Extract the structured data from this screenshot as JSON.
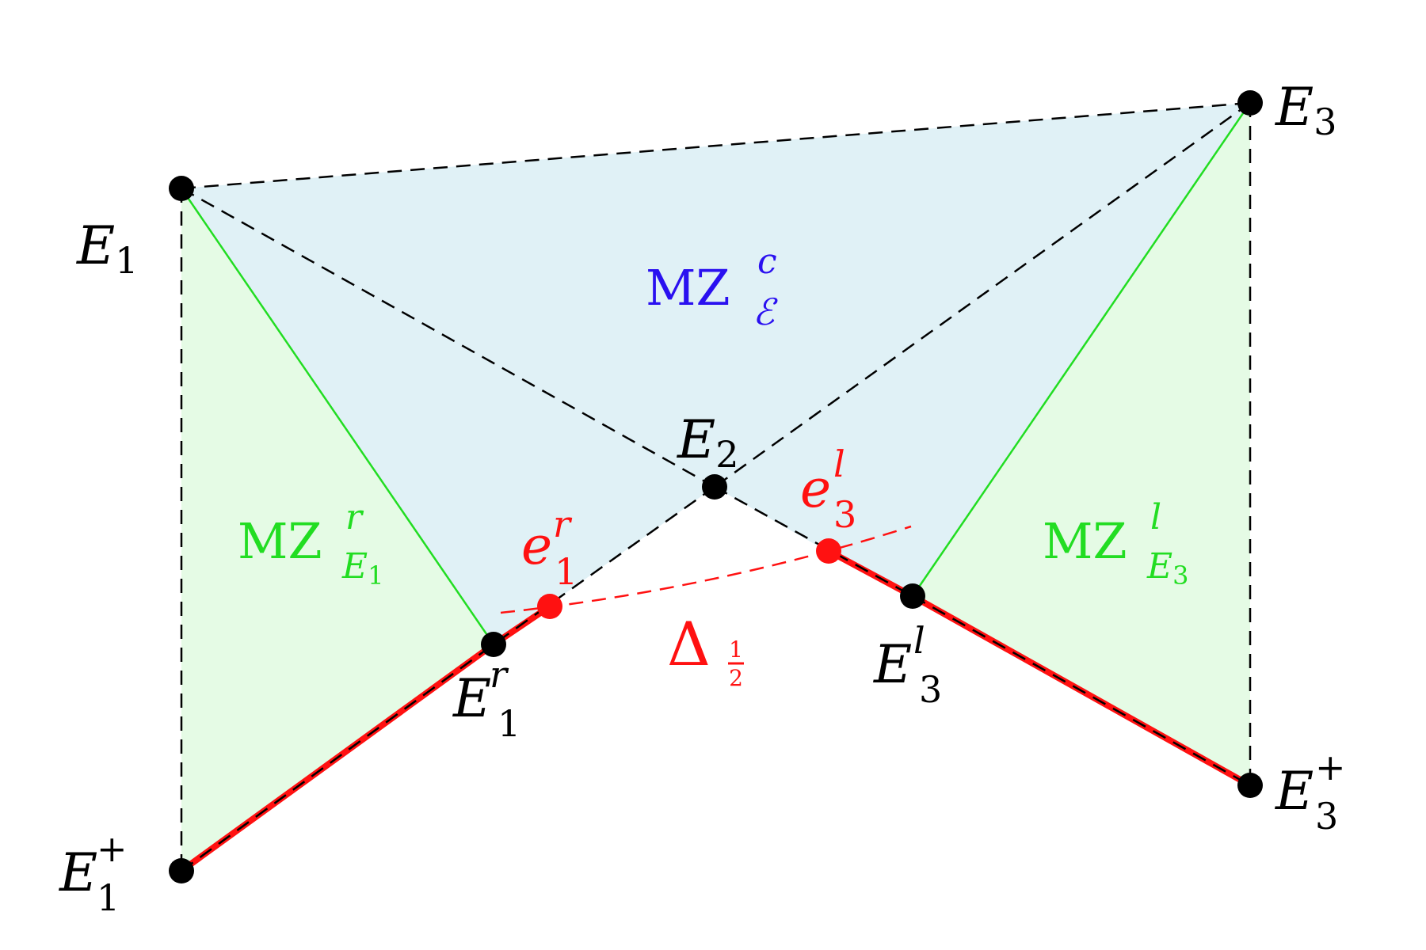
{
  "colors": {
    "center_fill": "#e0f1f6",
    "side_fill": "#e5fbe5",
    "green": "#22dd22",
    "red": "#ff1111",
    "blue": "#2a10f0",
    "black": "#000000"
  },
  "points": {
    "E1": {
      "base": "E",
      "sub": "1",
      "sup": ""
    },
    "E2": {
      "base": "E",
      "sub": "2",
      "sup": ""
    },
    "E3": {
      "base": "E",
      "sub": "3",
      "sup": ""
    },
    "E1plus": {
      "base": "E",
      "sub": "1",
      "sup": "+"
    },
    "E3plus": {
      "base": "E",
      "sub": "3",
      "sup": "+"
    },
    "E1r": {
      "base": "E",
      "sub": "1",
      "sup": "r"
    },
    "E3l": {
      "base": "E",
      "sub": "3",
      "sup": "l"
    },
    "e1r": {
      "base": "e",
      "sub": "1",
      "sup": "r"
    },
    "e3l": {
      "base": "e",
      "sub": "3",
      "sup": "l"
    }
  },
  "regions": {
    "center": {
      "base": "MZ",
      "sub": "ℰ",
      "sup": "c"
    },
    "left": {
      "base": "MZ",
      "sub": "E",
      "sub_index": "1",
      "sup": "r"
    },
    "right": {
      "base": "MZ",
      "sub": "E",
      "sub_index": "3",
      "sup": "l"
    }
  },
  "delta": {
    "symbol": "Δ",
    "num": "1",
    "den": "2"
  }
}
